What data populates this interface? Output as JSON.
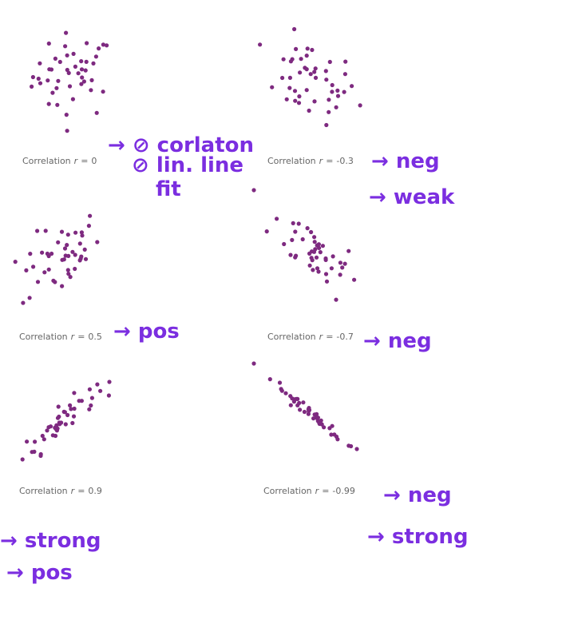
{
  "panels": [
    {
      "caption": {
        "label": "Correlation",
        "variable": "r",
        "relation": "=",
        "r": 0
      },
      "notes": [
        "→ ⊘ corlaton",
        "⊘ lin. line",
        "fit"
      ]
    },
    {
      "caption": {
        "label": "Correlation",
        "variable": "r",
        "relation": "=",
        "r": -0.3
      },
      "notes": [
        "→ neg",
        "→ weak"
      ]
    },
    {
      "caption": {
        "label": "Correlation",
        "variable": "r",
        "relation": "=",
        "r": 0.5
      },
      "notes": [
        "→ pos"
      ]
    },
    {
      "caption": {
        "label": "Correlation",
        "variable": "r",
        "relation": "=",
        "r": -0.7
      },
      "notes": [
        "→ neg"
      ]
    },
    {
      "caption": {
        "label": "Correlation",
        "variable": "r",
        "relation": "=",
        "r": 0.9
      },
      "notes": [
        "→ strong",
        "→ pos"
      ]
    },
    {
      "caption": {
        "label": "Correlation",
        "variable": "r",
        "relation": "=",
        "r": -0.99
      },
      "notes": [
        "→ neg",
        "→ strong"
      ]
    }
  ]
}
